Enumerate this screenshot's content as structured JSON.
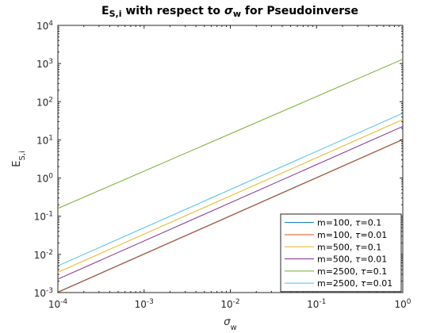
{
  "chart_data": {
    "type": "line",
    "title": {
      "parts": [
        {
          "text": "E",
          "sub": false,
          "style": "normal"
        },
        {
          "text": "S,i",
          "sub": true,
          "style": "normal"
        },
        {
          "text": " with respect to ",
          "sub": false,
          "style": "normal"
        },
        {
          "text": "σ",
          "sub": false,
          "style": "italic"
        },
        {
          "text": "w",
          "sub": true,
          "style": "normal"
        },
        {
          "text": " for Pseudoinverse",
          "sub": false,
          "style": "normal"
        }
      ]
    },
    "xlabel": {
      "base": "σ",
      "sub": "w"
    },
    "ylabel": {
      "base": "E",
      "sub": "S,i"
    },
    "xscale": "log",
    "yscale": "log",
    "xlim": [
      0.0001,
      1
    ],
    "ylim": [
      0.001,
      10000
    ],
    "grid": false,
    "legend_position": "bottom-right",
    "x_ticks": [
      {
        "value": 0.0001,
        "base": "10",
        "exp": "-4"
      },
      {
        "value": 0.001,
        "base": "10",
        "exp": "-3"
      },
      {
        "value": 0.01,
        "base": "10",
        "exp": "-2"
      },
      {
        "value": 0.1,
        "base": "10",
        "exp": "-1"
      },
      {
        "value": 1,
        "base": "10",
        "exp": "0"
      }
    ],
    "y_ticks": [
      {
        "value": 0.001,
        "base": "10",
        "exp": "-3"
      },
      {
        "value": 0.01,
        "base": "10",
        "exp": "-2"
      },
      {
        "value": 0.1,
        "base": "10",
        "exp": "-1"
      },
      {
        "value": 1,
        "base": "10",
        "exp": "0"
      },
      {
        "value": 10,
        "base": "10",
        "exp": "1"
      },
      {
        "value": 100,
        "base": "10",
        "exp": "2"
      },
      {
        "value": 1000,
        "base": "10",
        "exp": "3"
      },
      {
        "value": 10000,
        "base": "10",
        "exp": "4"
      }
    ],
    "series": [
      {
        "name": "m=100, τ=0.1",
        "label_prefix": "m=100, ",
        "label_symbol": "τ",
        "label_suffix": "=0.1",
        "color": "#0072BD",
        "x": [
          0.0001,
          1
        ],
        "y": [
          0.00103,
          10.3
        ]
      },
      {
        "name": "m=100, τ=0.01",
        "label_prefix": "m=100, ",
        "label_symbol": "τ",
        "label_suffix": "=0.01",
        "color": "#D95319",
        "x": [
          0.0001,
          1
        ],
        "y": [
          0.00101,
          10.1
        ]
      },
      {
        "name": "m=500, τ=0.1",
        "label_prefix": "m=500, ",
        "label_symbol": "τ",
        "label_suffix": "=0.1",
        "color": "#EDB120",
        "x": [
          0.0001,
          1
        ],
        "y": [
          0.0034,
          34
        ]
      },
      {
        "name": "m=500, τ=0.01",
        "label_prefix": "m=500, ",
        "label_symbol": "τ",
        "label_suffix": "=0.01",
        "color": "#7E2F8E",
        "x": [
          0.0001,
          1
        ],
        "y": [
          0.00225,
          22.5
        ]
      },
      {
        "name": "m=2500, τ=0.1",
        "label_prefix": "m=2500, ",
        "label_symbol": "τ",
        "label_suffix": "=0.1",
        "color": "#77AC30",
        "x": [
          0.0001,
          1
        ],
        "y": [
          0.16,
          1300
        ]
      },
      {
        "name": "m=2500, τ=0.01",
        "label_prefix": "m=2500, ",
        "label_symbol": "τ",
        "label_suffix": "=0.01",
        "color": "#4DBEEE",
        "x": [
          0.0001,
          1
        ],
        "y": [
          0.005,
          50
        ]
      }
    ]
  }
}
